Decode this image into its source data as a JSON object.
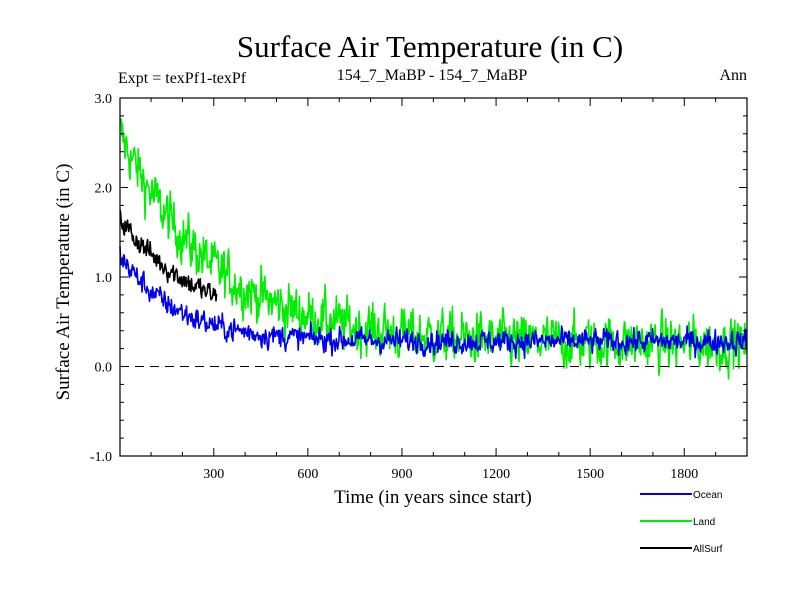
{
  "chart_data": {
    "type": "line",
    "title": "Surface Air Temperature (in C)",
    "subtitle_left": "Expt = texPf1-texPf",
    "subtitle_center": "154_7_MaBP - 154_7_MaBP",
    "subtitle_right": "Ann",
    "xlabel": "Time (in years since start)",
    "ylabel": "Surface Air Temperature (in C)",
    "xlim": [
      1,
      2000
    ],
    "ylim": [
      -1.0,
      3.0
    ],
    "x_ticks": [
      300,
      600,
      900,
      1200,
      1500,
      1800
    ],
    "x_tick_labels": [
      "300",
      "600",
      "900",
      "1200",
      "1500",
      "1800"
    ],
    "y_ticks": [
      -1.0,
      0.0,
      1.0,
      2.0,
      3.0
    ],
    "y_tick_labels": [
      "-1.0",
      "0.0",
      "1.0",
      "2.0",
      "3.0"
    ],
    "reference_line": {
      "y": 0.0,
      "style": "dashed"
    },
    "series": [
      {
        "name": "Land",
        "color": "#00ee00",
        "x_range": [
          1,
          2000
        ],
        "envelope": {
          "start": 2.6,
          "end": 0.25,
          "decay_years": 300,
          "noise": 0.26
        }
      },
      {
        "name": "AllSurf",
        "color": "#000000",
        "x_range": [
          1,
          310
        ],
        "envelope": {
          "start": 1.65,
          "end": 0.4,
          "decay_years": 260,
          "noise": 0.12
        }
      },
      {
        "name": "Ocean",
        "color": "#0000ee",
        "x_range": [
          1,
          2000
        ],
        "envelope": {
          "start": 1.25,
          "end": 0.28,
          "decay_years": 180,
          "noise": 0.12
        }
      }
    ],
    "legend": [
      {
        "label": "Ocean",
        "color": "#0000ee"
      },
      {
        "label": "Land",
        "color": "#00ee00"
      },
      {
        "label": "AllSurf",
        "color": "#000000"
      }
    ]
  }
}
